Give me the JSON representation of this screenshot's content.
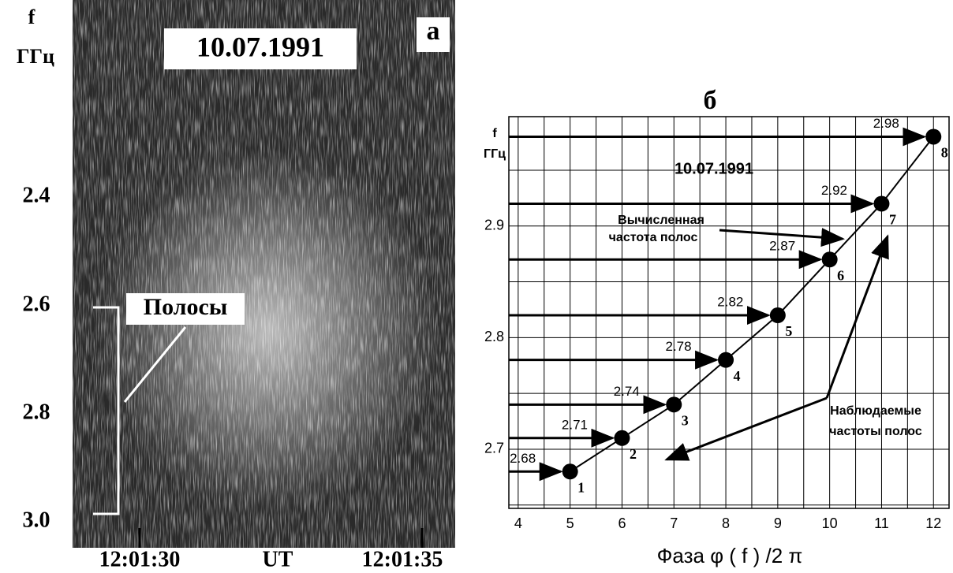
{
  "panel_a": {
    "title": "10.07.1991",
    "label": "а",
    "y_label": [
      "f",
      "ГГц"
    ],
    "yticks": [
      "2.4",
      "2.6",
      "2.8",
      "3.0"
    ],
    "band_label": "Полосы",
    "xticks": [
      "12:01:30",
      "12:01:35"
    ],
    "x_label": "UT"
  },
  "chart_data": {
    "type": "line",
    "title": "б",
    "annotation": "10.07.1991",
    "y_label": [
      "f",
      "ГГц"
    ],
    "x_label": "Фаза φ ( f ) /2 π",
    "computed_label": [
      "Вычисленная",
      "частота полос"
    ],
    "observed_label": [
      "Наблюдаемые",
      "частоты полос"
    ],
    "x": [
      5,
      6,
      7,
      8,
      9,
      10,
      11,
      12
    ],
    "series": [
      {
        "color": "#000000",
        "values": [
          2.68,
          2.71,
          2.74,
          2.78,
          2.82,
          2.87,
          2.92,
          2.98
        ]
      }
    ],
    "point_labels": [
      "1",
      "2",
      "3",
      "4",
      "5",
      "6",
      "7",
      "8"
    ],
    "xlim": [
      3.82,
      12.3
    ],
    "xticks": [
      4,
      5,
      6,
      7,
      8,
      9,
      10,
      11,
      12
    ],
    "minor_xticks": [
      4.5,
      5.5,
      6.5,
      7.5,
      8.5,
      9.5,
      10.5,
      11.5
    ],
    "ylim": [
      2.647,
      2.998
    ],
    "yticks": [
      2.7,
      2.8,
      2.9
    ],
    "minor_yticks": [
      2.65,
      2.75,
      2.85,
      2.95
    ],
    "grid": true
  }
}
